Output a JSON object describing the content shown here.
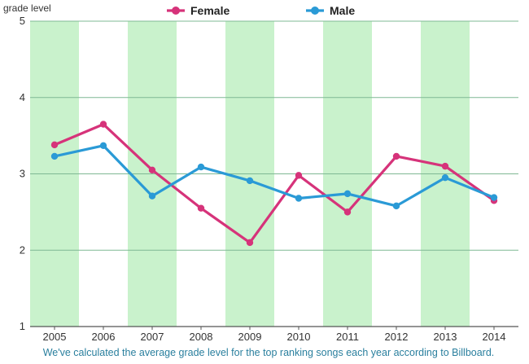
{
  "chart_data": {
    "type": "line",
    "ylabel": "grade level",
    "ylim": [
      1,
      5
    ],
    "yticks": [
      "1",
      "2",
      "3",
      "4",
      "5"
    ],
    "categories": [
      "2005",
      "2006",
      "2007",
      "2008",
      "2009",
      "2010",
      "2011",
      "2012",
      "2013",
      "2014"
    ],
    "shaded_categories": [
      "2005",
      "2007",
      "2009",
      "2011",
      "2013"
    ],
    "shade_color": "#c9f2cc",
    "grid": true,
    "legend_position": "top-center",
    "series": [
      {
        "name": "Female",
        "color": "#d6337a",
        "values": [
          3.38,
          3.65,
          3.05,
          2.55,
          2.1,
          2.98,
          2.5,
          3.23,
          3.1,
          2.65
        ]
      },
      {
        "name": "Male",
        "color": "#2a9ad6",
        "values": [
          3.23,
          3.37,
          2.71,
          3.09,
          2.91,
          2.68,
          2.74,
          2.58,
          2.95,
          2.69
        ]
      }
    ],
    "caption": "We've calculated the average grade level for the top ranking songs each year according to Billboard."
  }
}
